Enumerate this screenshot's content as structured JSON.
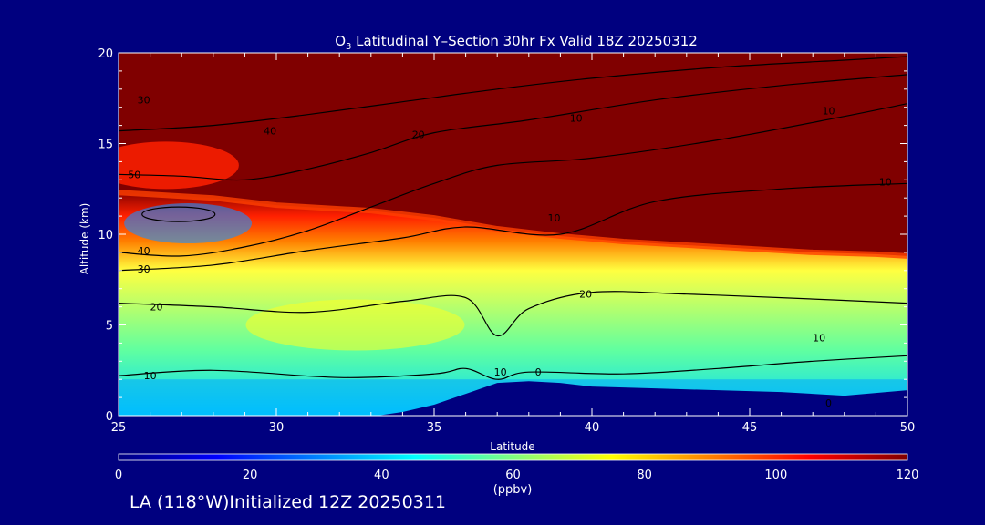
{
  "colors": {
    "background": "#00007f",
    "contour": "#000000",
    "text": "#ffffff"
  },
  "chart_data": {
    "type": "heatmap",
    "title_main": "O",
    "title_sub": "3",
    "title_rest": " Latitudinal Y–Section 30hr  Fx Valid 18Z 20250312",
    "xlabel": "Latitude",
    "ylabel": "Altitude (km)",
    "xlim": [
      25,
      50
    ],
    "ylim": [
      0,
      20
    ],
    "xticks": [
      "25",
      "30",
      "35",
      "40",
      "45",
      "50"
    ],
    "yticks": [
      "0",
      "5",
      "10",
      "15",
      "20"
    ],
    "colorbar": {
      "min": 0,
      "max": 120,
      "ticks": [
        "0",
        "20",
        "40",
        "60",
        "80",
        "100",
        "120"
      ],
      "unit": "(ppbv)",
      "stops": [
        "#00007f",
        "#0000ff",
        "#0080ff",
        "#00ffff",
        "#80ff80",
        "#ffff00",
        "#ff8000",
        "#ff0000",
        "#800000"
      ]
    },
    "tropopause_km": [
      [
        25,
        12.3
      ],
      [
        28,
        12.0
      ],
      [
        30,
        11.6
      ],
      [
        33,
        11.3
      ],
      [
        35,
        10.9
      ],
      [
        37,
        10.3
      ],
      [
        39,
        9.9
      ],
      [
        41,
        9.6
      ],
      [
        43,
        9.4
      ],
      [
        45,
        9.2
      ],
      [
        47,
        9.0
      ],
      [
        49,
        8.9
      ],
      [
        50,
        8.8
      ]
    ],
    "terrain_km": [
      [
        33.2,
        0
      ],
      [
        34,
        0.2
      ],
      [
        35,
        0.6
      ],
      [
        36,
        1.2
      ],
      [
        37,
        1.8
      ],
      [
        38,
        1.9
      ],
      [
        39,
        1.8
      ],
      [
        40,
        1.6
      ],
      [
        42,
        1.5
      ],
      [
        44,
        1.4
      ],
      [
        46,
        1.3
      ],
      [
        48,
        1.1
      ],
      [
        50,
        1.4
      ]
    ],
    "contours": [
      {
        "level": "10",
        "points": [
          [
            25,
            2.2
          ],
          [
            28,
            2.5
          ],
          [
            32,
            2.1
          ],
          [
            35,
            2.3
          ],
          [
            36,
            2.6
          ],
          [
            37,
            2.0
          ],
          [
            38,
            2.4
          ],
          [
            41,
            2.3
          ],
          [
            44,
            2.6
          ],
          [
            47,
            3.0
          ],
          [
            50,
            3.3
          ]
        ]
      },
      {
        "level": "20",
        "points": [
          [
            25,
            6.2
          ],
          [
            28,
            6.0
          ],
          [
            31,
            5.7
          ],
          [
            34,
            6.3
          ],
          [
            36,
            6.5
          ],
          [
            37,
            4.4
          ],
          [
            38,
            5.9
          ],
          [
            40,
            6.8
          ],
          [
            43,
            6.7
          ],
          [
            46,
            6.5
          ],
          [
            50,
            6.2
          ]
        ]
      },
      {
        "level": "30",
        "points": [
          [
            25,
            8.0
          ],
          [
            28,
            8.3
          ],
          [
            31,
            9.1
          ],
          [
            34,
            9.8
          ],
          [
            36,
            10.4
          ],
          [
            39,
            10.0
          ],
          [
            42,
            11.8
          ],
          [
            46,
            12.5
          ],
          [
            50,
            12.8
          ]
        ]
      },
      {
        "level": "40",
        "points": [
          [
            25,
            9.0
          ],
          [
            27,
            8.8
          ],
          [
            29,
            9.3
          ],
          [
            31,
            10.2
          ],
          [
            33,
            11.5
          ],
          [
            35,
            12.8
          ],
          [
            37,
            13.8
          ],
          [
            40,
            14.2
          ],
          [
            44,
            15.2
          ],
          [
            48,
            16.5
          ],
          [
            50,
            17.2
          ]
        ]
      },
      {
        "level": "50",
        "points": [
          [
            25,
            13.3
          ],
          [
            27,
            13.2
          ],
          [
            29,
            13.0
          ],
          [
            31,
            13.6
          ],
          [
            33,
            14.5
          ],
          [
            35,
            15.6
          ],
          [
            38,
            16.3
          ],
          [
            42,
            17.4
          ],
          [
            46,
            18.2
          ],
          [
            50,
            18.8
          ]
        ]
      },
      {
        "level": "",
        "points": [
          [
            25,
            15.7
          ],
          [
            28,
            16.0
          ],
          [
            31,
            16.6
          ],
          [
            34,
            17.3
          ],
          [
            37,
            18.0
          ],
          [
            40,
            18.6
          ],
          [
            44,
            19.2
          ],
          [
            48,
            19.6
          ],
          [
            50,
            19.8
          ]
        ]
      }
    ],
    "contour_labels": [
      {
        "text": "30",
        "x": 25.8,
        "y": 17.2
      },
      {
        "text": "40",
        "x": 29.8,
        "y": 15.5
      },
      {
        "text": "50",
        "x": 25.5,
        "y": 13.1
      },
      {
        "text": "10",
        "x": 39.5,
        "y": 16.2
      },
      {
        "text": "10",
        "x": 47.5,
        "y": 16.6
      },
      {
        "text": "20",
        "x": 34.5,
        "y": 15.3
      },
      {
        "text": "10",
        "x": 49.3,
        "y": 12.7
      },
      {
        "text": "10",
        "x": 38.8,
        "y": 10.7
      },
      {
        "text": "40",
        "x": 25.8,
        "y": 8.9
      },
      {
        "text": "30",
        "x": 25.8,
        "y": 7.9
      },
      {
        "text": "20",
        "x": 26.2,
        "y": 5.8
      },
      {
        "text": "20",
        "x": 39.8,
        "y": 6.5
      },
      {
        "text": "10",
        "x": 26.0,
        "y": 2.0
      },
      {
        "text": "10",
        "x": 37.1,
        "y": 2.2
      },
      {
        "text": "0",
        "x": 38.3,
        "y": 2.2
      },
      {
        "text": "10",
        "x": 47.2,
        "y": 4.1
      },
      {
        "text": "0",
        "x": 47.5,
        "y": 0.5
      }
    ]
  },
  "footer": {
    "text": "LA (118°W)Initialized 12Z 20250311"
  }
}
